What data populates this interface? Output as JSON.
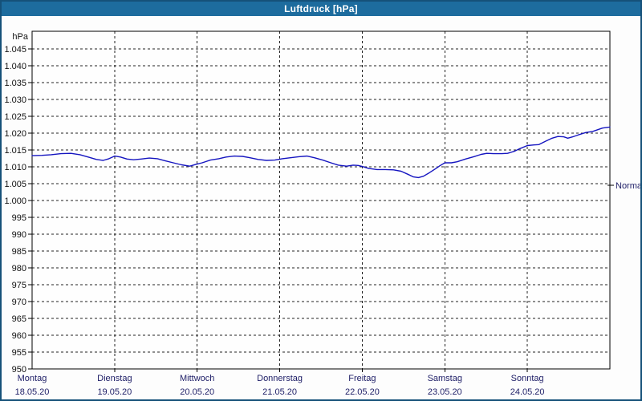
{
  "window": {
    "title": "Luftdruck [hPa]"
  },
  "colors": {
    "titlebar_bg": "#1d6c9e",
    "frame_border": "#155179",
    "plot_background": "#fefefe",
    "grid_line": "#222222",
    "axis_text": "#111111",
    "day_text": "#1d1d66",
    "series_line": "#1515c0"
  },
  "chart_data": {
    "type": "line",
    "title": "Luftdruck [hPa]",
    "y_unit_label": "hPa",
    "y_min": 950,
    "y_max": 1050,
    "y_step": 5,
    "grid": "dashed",
    "y_ticks": [
      {
        "value": 1045,
        "label": "1.045"
      },
      {
        "value": 1040,
        "label": "1.040"
      },
      {
        "value": 1035,
        "label": "1.035"
      },
      {
        "value": 1030,
        "label": "1.030"
      },
      {
        "value": 1025,
        "label": "1.025"
      },
      {
        "value": 1020,
        "label": "1.020"
      },
      {
        "value": 1015,
        "label": "1.015"
      },
      {
        "value": 1010,
        "label": "1.010"
      },
      {
        "value": 1005,
        "label": "1.005"
      },
      {
        "value": 1000,
        "label": "1.000"
      },
      {
        "value": 995,
        "label": "995"
      },
      {
        "value": 990,
        "label": "990"
      },
      {
        "value": 985,
        "label": "985"
      },
      {
        "value": 980,
        "label": "980"
      },
      {
        "value": 975,
        "label": "975"
      },
      {
        "value": 970,
        "label": "970"
      },
      {
        "value": 965,
        "label": "965"
      },
      {
        "value": 960,
        "label": "960"
      },
      {
        "value": 955,
        "label": "955"
      },
      {
        "value": 950,
        "label": "950"
      }
    ],
    "days": [
      {
        "name": "Montag",
        "date": "18.05.20"
      },
      {
        "name": "Dienstag",
        "date": "19.05.20"
      },
      {
        "name": "Mittwoch",
        "date": "20.05.20"
      },
      {
        "name": "Donnerstag",
        "date": "21.05.20"
      },
      {
        "name": "Freitag",
        "date": "22.05.20"
      },
      {
        "name": "Samstag",
        "date": "23.05.20"
      },
      {
        "name": "Sonntag",
        "date": "24.05.20"
      }
    ],
    "normal_marker": {
      "label": "Normal",
      "value_hpa": 1004.5
    },
    "series": [
      {
        "name": "Luftdruck",
        "color": "#1515c0",
        "points_t_days_vs_hpa": [
          [
            0.0,
            1013.3
          ],
          [
            0.12,
            1013.4
          ],
          [
            0.23,
            1013.6
          ],
          [
            0.35,
            1013.9
          ],
          [
            0.47,
            1014.0
          ],
          [
            0.58,
            1013.6
          ],
          [
            0.68,
            1012.9
          ],
          [
            0.78,
            1012.2
          ],
          [
            0.86,
            1011.9
          ],
          [
            0.93,
            1012.4
          ],
          [
            1.0,
            1013.2
          ],
          [
            1.07,
            1012.9
          ],
          [
            1.15,
            1012.3
          ],
          [
            1.23,
            1012.1
          ],
          [
            1.32,
            1012.3
          ],
          [
            1.42,
            1012.6
          ],
          [
            1.52,
            1012.4
          ],
          [
            1.61,
            1011.8
          ],
          [
            1.71,
            1011.2
          ],
          [
            1.81,
            1010.6
          ],
          [
            1.91,
            1010.2
          ],
          [
            1.98,
            1010.7
          ],
          [
            2.06,
            1011.2
          ],
          [
            2.16,
            1012.0
          ],
          [
            2.26,
            1012.4
          ],
          [
            2.35,
            1012.9
          ],
          [
            2.45,
            1013.2
          ],
          [
            2.55,
            1013.1
          ],
          [
            2.64,
            1012.7
          ],
          [
            2.74,
            1012.2
          ],
          [
            2.84,
            1011.9
          ],
          [
            2.94,
            1012.0
          ],
          [
            3.03,
            1012.4
          ],
          [
            3.13,
            1012.7
          ],
          [
            3.23,
            1013.0
          ],
          [
            3.33,
            1013.2
          ],
          [
            3.42,
            1012.7
          ],
          [
            3.52,
            1012.0
          ],
          [
            3.62,
            1011.2
          ],
          [
            3.71,
            1010.5
          ],
          [
            3.81,
            1010.2
          ],
          [
            3.89,
            1010.5
          ],
          [
            3.95,
            1010.4
          ],
          [
            4.0,
            1010.1
          ],
          [
            4.08,
            1009.5
          ],
          [
            4.18,
            1009.2
          ],
          [
            4.28,
            1009.2
          ],
          [
            4.38,
            1009.1
          ],
          [
            4.47,
            1008.7
          ],
          [
            4.55,
            1007.8
          ],
          [
            4.62,
            1007.0
          ],
          [
            4.68,
            1006.8
          ],
          [
            4.74,
            1007.2
          ],
          [
            4.81,
            1008.2
          ],
          [
            4.88,
            1009.3
          ],
          [
            4.94,
            1010.3
          ],
          [
            5.0,
            1011.2
          ],
          [
            5.08,
            1011.2
          ],
          [
            5.15,
            1011.5
          ],
          [
            5.25,
            1012.3
          ],
          [
            5.35,
            1013.0
          ],
          [
            5.44,
            1013.7
          ],
          [
            5.51,
            1014.0
          ],
          [
            5.59,
            1013.9
          ],
          [
            5.69,
            1013.9
          ],
          [
            5.76,
            1014.0
          ],
          [
            5.84,
            1014.6
          ],
          [
            5.91,
            1015.4
          ],
          [
            6.0,
            1016.3
          ],
          [
            6.08,
            1016.5
          ],
          [
            6.14,
            1016.6
          ],
          [
            6.22,
            1017.6
          ],
          [
            6.3,
            1018.5
          ],
          [
            6.37,
            1019.0
          ],
          [
            6.44,
            1018.9
          ],
          [
            6.49,
            1018.5
          ],
          [
            6.55,
            1018.9
          ],
          [
            6.62,
            1019.5
          ],
          [
            6.71,
            1020.2
          ],
          [
            6.79,
            1020.5
          ],
          [
            6.85,
            1021.0
          ],
          [
            6.91,
            1021.5
          ],
          [
            6.96,
            1021.7
          ],
          [
            7.0,
            1021.8
          ]
        ]
      }
    ],
    "x_range_days": [
      0,
      7
    ],
    "legend": "none"
  }
}
